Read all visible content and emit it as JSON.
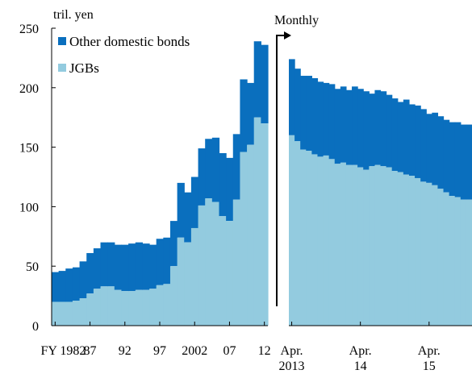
{
  "chart_data": {
    "type": "area",
    "unit_label": "tril. yen",
    "legend_position": "top-left",
    "colors": {
      "other_domestic_bonds": "#0a6fbe",
      "jgbs": "#93cbdf"
    },
    "ylim": [
      0,
      250
    ],
    "y_ticks": [
      "0",
      "50",
      "100",
      "150",
      "200",
      "250"
    ],
    "panels": [
      {
        "x_axis": "fiscal year",
        "x": [
          1982,
          1983,
          1984,
          1985,
          1986,
          1987,
          1988,
          1989,
          1990,
          1991,
          1992,
          1993,
          1994,
          1995,
          1996,
          1997,
          1998,
          1999,
          2000,
          2001,
          2002,
          2003,
          2004,
          2005,
          2006,
          2007,
          2008,
          2009,
          2010,
          2011,
          2012
        ],
        "x_tick_labels": [
          {
            "x": 1982,
            "label": "FY 1982"
          },
          {
            "x": 1987,
            "label": "87"
          },
          {
            "x": 1992,
            "label": "92"
          },
          {
            "x": 1997,
            "label": "97"
          },
          {
            "x": 2002,
            "label": "2002"
          },
          {
            "x": 2007,
            "label": "07"
          },
          {
            "x": 2012,
            "label": "12"
          }
        ],
        "series": [
          {
            "name": "JGBs",
            "values": [
              20,
              20,
              20,
              21,
              23,
              27,
              31,
              33,
              33,
              30,
              29,
              29,
              30,
              30,
              31,
              34,
              35,
              50,
              74,
              70,
              82,
              101,
              107,
              104,
              92,
              88,
              106,
              146,
              152,
              175,
              170
            ]
          },
          {
            "name": "Other domestic bonds",
            "values": [
              45,
              46,
              48,
              49,
              54,
              61,
              65,
              70,
              70,
              68,
              68,
              69,
              70,
              69,
              68,
              73,
              74,
              88,
              120,
              112,
              125,
              149,
              157,
              158,
              145,
              141,
              161,
              207,
              204,
              239,
              236
            ]
          }
        ]
      },
      {
        "x_axis": "month",
        "panel_title": "Monthly",
        "x": [
          "2013-04",
          "2013-05",
          "2013-06",
          "2013-07",
          "2013-08",
          "2013-09",
          "2013-10",
          "2013-11",
          "2013-12",
          "2014-01",
          "2014-02",
          "2014-03",
          "2014-04",
          "2014-05",
          "2014-06",
          "2014-07",
          "2014-08",
          "2014-09",
          "2014-10",
          "2014-11",
          "2014-12",
          "2015-01",
          "2015-02",
          "2015-03",
          "2015-04",
          "2015-05",
          "2015-06",
          "2015-07",
          "2015-08",
          "2015-09",
          "2015-10",
          "2015-11"
        ],
        "x_tick_labels": [
          {
            "x": "2013-04",
            "label": "Apr.",
            "sub": "2013"
          },
          {
            "x": "2014-04",
            "label": "Apr.",
            "sub": "14"
          },
          {
            "x": "2015-04",
            "label": "Apr.",
            "sub": "15"
          }
        ],
        "series": [
          {
            "name": "JGBs",
            "values": [
              160,
              155,
              148,
              147,
              144,
              142,
              143,
              140,
              136,
              137,
              135,
              135,
              133,
              131,
              134,
              135,
              134,
              133,
              130,
              129,
              127,
              126,
              124,
              121,
              120,
              118,
              115,
              112,
              109,
              108,
              106,
              106
            ]
          },
          {
            "name": "Other domestic bonds",
            "values": [
              224,
              216,
              210,
              210,
              208,
              205,
              204,
              203,
              199,
              201,
              198,
              201,
              199,
              197,
              195,
              198,
              197,
              194,
              191,
              188,
              190,
              186,
              185,
              182,
              178,
              179,
              176,
              173,
              171,
              171,
              169,
              169
            ]
          }
        ]
      }
    ]
  }
}
